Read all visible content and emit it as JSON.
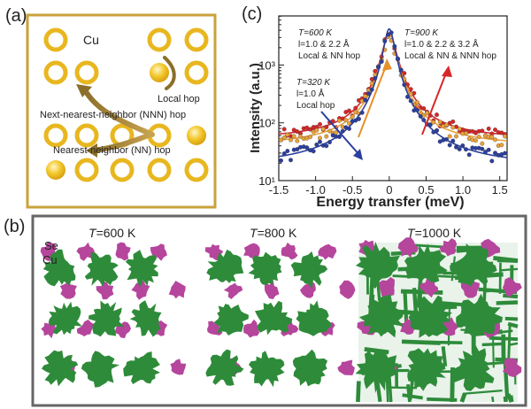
{
  "panel_a": {
    "label": "(a)",
    "cu_label": "Cu",
    "local_hop": "Local hop",
    "nnn_hop": "Next-nearest-neighbor (NNN) hop",
    "nn_hop": "Nearest-neighbor (NN) hop"
  },
  "panel_b": {
    "label": "(b)",
    "se_label": "Se",
    "cu_label": "Cu",
    "snapshots": [
      {
        "t_prefix": "T",
        "t_value": "=600 K"
      },
      {
        "t_prefix": "T",
        "t_value": "=800 K"
      },
      {
        "t_prefix": "T",
        "t_value": "=1000 K"
      }
    ],
    "colors": {
      "cu": "#2e8b3a",
      "se": "#b5469c",
      "ring": "#e8b720",
      "border": "#c9a23b"
    }
  },
  "panel_c": {
    "label": "(c)",
    "annotations": {
      "t900": {
        "l1": "T=900 K",
        "l2": "l=1.0 & 2.2 & 3.2 Å",
        "l3": "Local & NN & NNN hop"
      },
      "t600": {
        "l1": "T=600 K",
        "l2": "l=1.0 & 2.2 Å",
        "l3": "Local & NN hop"
      },
      "t320": {
        "l1": "T=320 K",
        "l2": "l=1.0 Å",
        "l3": "Local hop"
      }
    }
  },
  "chart_data": {
    "type": "scatter",
    "xlabel": "Energy transfer (meV)",
    "ylabel": "Intensity (a.u.)",
    "xlim": [
      -1.5,
      1.6
    ],
    "ylim_log10": [
      1,
      3.85
    ],
    "y_scale": "log",
    "x_ticks": [
      "-1.5",
      "-1.0",
      "-0.5",
      "0",
      "0.5",
      "1.0",
      "1.5"
    ],
    "y_ticks": [
      "10¹",
      "10²",
      "10³"
    ],
    "series": [
      {
        "color": "#d62728",
        "base": 52,
        "amp": 3400,
        "width": 0.09
      },
      {
        "color": "#e8a23a",
        "base": 40,
        "amp": 3600,
        "width": 0.08
      },
      {
        "color": "#2b3f9e",
        "base": 17,
        "amp": 4200,
        "width": 0.07
      }
    ]
  }
}
